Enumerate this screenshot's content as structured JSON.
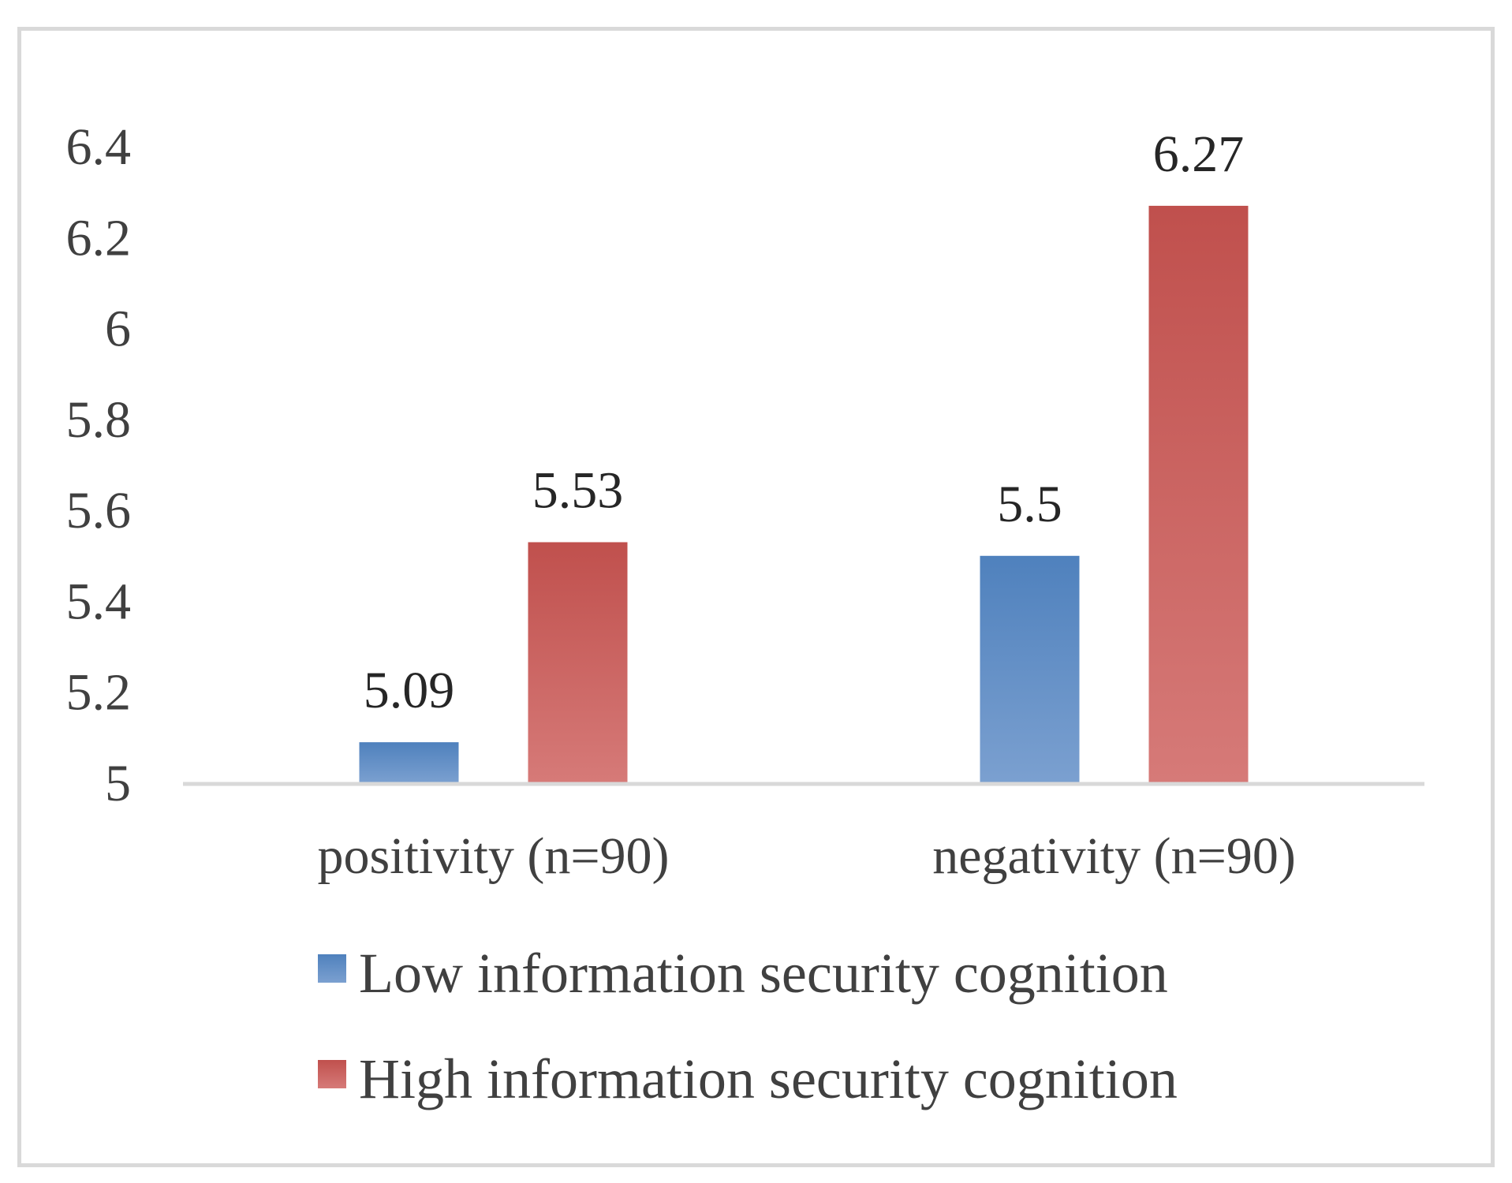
{
  "chart_data": {
    "type": "bar",
    "title": "",
    "xlabel": "",
    "ylabel": "",
    "categories": [
      "positivity (n=90)",
      "negativity (n=90)"
    ],
    "series": [
      {
        "name": "Low information security cognition",
        "values": [
          5.09,
          5.5
        ],
        "labels": [
          "5.09",
          "5.5"
        ],
        "color": "#4f81bd"
      },
      {
        "name": "High information security cognition",
        "values": [
          5.53,
          6.27
        ],
        "labels": [
          "5.53",
          "6.27"
        ],
        "color": "#c0504d"
      }
    ],
    "ylim": [
      5,
      6.4
    ],
    "yticks": [
      "5",
      "5.2",
      "5.4",
      "5.6",
      "5.8",
      "6",
      "6.2",
      "6.4"
    ],
    "grid": false,
    "legend_position": "bottom"
  }
}
